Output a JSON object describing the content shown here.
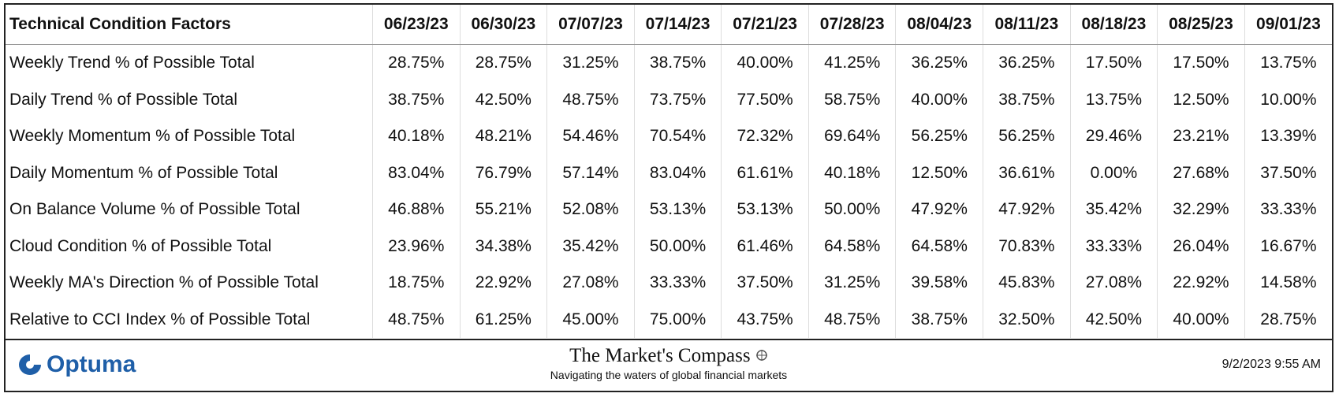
{
  "table": {
    "header": [
      "Technical Condition Factors",
      "06/23/23",
      "06/30/23",
      "07/07/23",
      "07/14/23",
      "07/21/23",
      "07/28/23",
      "08/04/23",
      "08/11/23",
      "08/18/23",
      "08/25/23",
      "09/01/23"
    ],
    "rows": [
      [
        "Weekly Trend % of Possible Total",
        "28.75%",
        "28.75%",
        "31.25%",
        "38.75%",
        "40.00%",
        "41.25%",
        "36.25%",
        "36.25%",
        "17.50%",
        "17.50%",
        "13.75%"
      ],
      [
        "Daily Trend % of Possible Total",
        "38.75%",
        "42.50%",
        "48.75%",
        "73.75%",
        "77.50%",
        "58.75%",
        "40.00%",
        "38.75%",
        "13.75%",
        "12.50%",
        "10.00%"
      ],
      [
        "Weekly Momentum % of Possible Total",
        "40.18%",
        "48.21%",
        "54.46%",
        "70.54%",
        "72.32%",
        "69.64%",
        "56.25%",
        "56.25%",
        "29.46%",
        "23.21%",
        "13.39%"
      ],
      [
        "Daily Momentum % of Possible Total",
        "83.04%",
        "76.79%",
        "57.14%",
        "83.04%",
        "61.61%",
        "40.18%",
        "12.50%",
        "36.61%",
        "0.00%",
        "27.68%",
        "37.50%"
      ],
      [
        "On Balance Volume % of Possible Total",
        "46.88%",
        "55.21%",
        "52.08%",
        "53.13%",
        "53.13%",
        "50.00%",
        "47.92%",
        "47.92%",
        "35.42%",
        "32.29%",
        "33.33%"
      ],
      [
        "Cloud Condition % of Possible Total",
        "23.96%",
        "34.38%",
        "35.42%",
        "50.00%",
        "61.46%",
        "64.58%",
        "64.58%",
        "70.83%",
        "33.33%",
        "26.04%",
        "16.67%"
      ],
      [
        "Weekly MA's Direction % of Possible Total",
        "18.75%",
        "22.92%",
        "27.08%",
        "33.33%",
        "37.50%",
        "31.25%",
        "39.58%",
        "45.83%",
        "27.08%",
        "22.92%",
        "14.58%"
      ],
      [
        "Relative to CCI Index % of Possible Total",
        "48.75%",
        "61.25%",
        "45.00%",
        "75.00%",
        "43.75%",
        "48.75%",
        "38.75%",
        "32.50%",
        "42.50%",
        "40.00%",
        "28.75%"
      ]
    ]
  },
  "footer": {
    "logo": "Optuma",
    "title": "The Market's Compass",
    "subtitle": "Navigating the waters of global financial markets",
    "timestamp": "9/2/2023 9:55 AM"
  }
}
